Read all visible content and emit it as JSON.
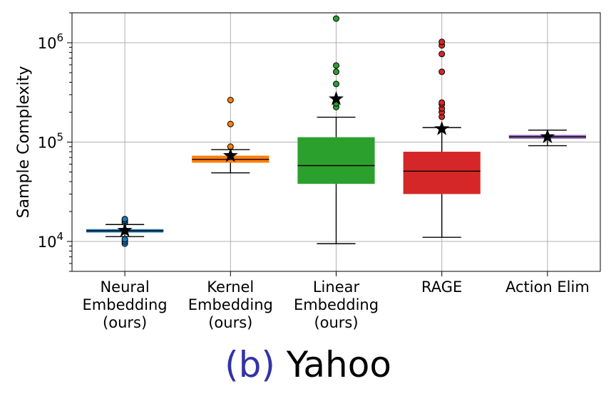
{
  "chart_data": {
    "type": "box",
    "ylabel": "Sample Complexity",
    "yscale": "log",
    "ylim": [
      5000,
      2000000
    ],
    "yticks": [
      {
        "value": 10000,
        "base": "10",
        "exp": "4"
      },
      {
        "value": 100000,
        "base": "10",
        "exp": "5"
      },
      {
        "value": 1000000,
        "base": "10",
        "exp": "6"
      }
    ],
    "grid": true,
    "categories": [
      {
        "lines": [
          "Neural",
          "Embedding",
          "(ours)"
        ],
        "color": "#1f77b4",
        "q1": 12300,
        "median": 12800,
        "q3": 13300,
        "whisker_low": 11200,
        "whisker_high": 14800,
        "mean": 12900,
        "outliers": [
          9500,
          10000,
          10500,
          15500,
          16200,
          16800
        ]
      },
      {
        "lines": [
          "Kernel",
          "Embedding",
          "(ours)"
        ],
        "color": "#ff7f0e",
        "q1": 62000,
        "median": 67000,
        "q3": 73000,
        "whisker_low": 49000,
        "whisker_high": 84000,
        "mean": 73000,
        "outliers": [
          90000,
          152000,
          265000
        ]
      },
      {
        "lines": [
          "Linear",
          "Embedding",
          "(ours)"
        ],
        "color": "#2ca02c",
        "q1": 38000,
        "median": 58000,
        "q3": 112000,
        "whisker_low": 9500,
        "whisker_high": 178000,
        "mean": 272000,
        "outliers": [
          225000,
          245000,
          385000,
          510000,
          590000,
          1750000
        ]
      },
      {
        "lines": [
          "RAGE"
        ],
        "color": "#d62728",
        "q1": 30000,
        "median": 51000,
        "q3": 80000,
        "whisker_low": 11000,
        "whisker_high": 140000,
        "mean": 136000,
        "outliers": [
          180000,
          200000,
          218000,
          240000,
          250000,
          510000,
          770000,
          940000,
          1020000
        ]
      },
      {
        "lines": [
          "Action Elim"
        ],
        "color": "#9467bd",
        "q1": 108000,
        "median": 113000,
        "q3": 118000,
        "whisker_low": 92000,
        "whisker_high": 132000,
        "mean": 113000,
        "outliers": []
      }
    ]
  },
  "caption": {
    "label": "(b)",
    "title": "Yahoo"
  }
}
